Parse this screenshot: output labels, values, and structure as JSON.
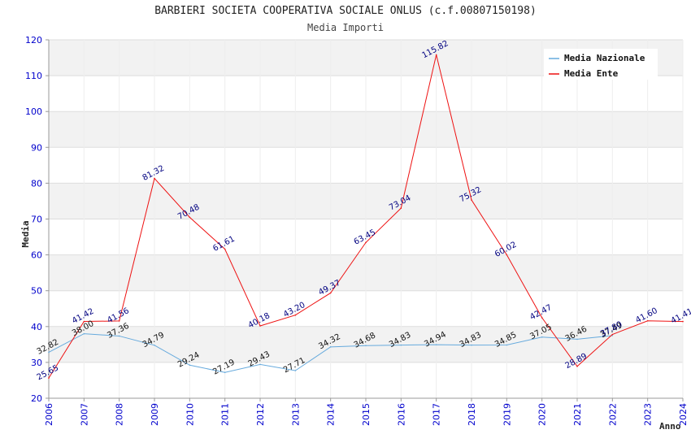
{
  "chart_data": {
    "type": "line",
    "title": "BARBIERI SOCIETA COOPERATIVA SOCIALE ONLUS (c.f.00807150198)",
    "subtitle": "Media Importi",
    "xlabel": "Anno",
    "ylabel": "Media",
    "ylim": [
      20,
      120
    ],
    "yticks": [
      20,
      30,
      40,
      50,
      60,
      70,
      80,
      90,
      100,
      110,
      120
    ],
    "x": [
      "2006",
      "2007",
      "2008",
      "2009",
      "2010",
      "2011",
      "2012",
      "2013",
      "2014",
      "2015",
      "2016",
      "2017",
      "2018",
      "2019",
      "2020",
      "2021",
      "2022",
      "2023",
      "2024"
    ],
    "grid": true,
    "legend_position": "top-right",
    "series": [
      {
        "name": "Media Nazionale",
        "color": "#66aadd",
        "label_color": "#111111",
        "values": [
          32.82,
          38.0,
          37.36,
          34.79,
          29.24,
          27.19,
          29.43,
          27.71,
          34.32,
          34.68,
          34.83,
          34.94,
          34.83,
          34.85,
          37.05,
          36.46,
          37.49,
          null,
          null
        ],
        "labels": [
          "32.82",
          "38.00",
          "37.36",
          "34.79",
          "29.24",
          "27.19",
          "29.43",
          "27.71",
          "34.32",
          "34.68",
          "34.83",
          "34.94",
          "34.83",
          "34.85",
          "37.05",
          "36.46",
          "37.49",
          "",
          ""
        ]
      },
      {
        "name": "Media Ente",
        "color": "#ee1111",
        "label_color": "#000080",
        "values": [
          25.65,
          41.42,
          41.56,
          81.32,
          70.48,
          61.61,
          40.18,
          43.2,
          49.37,
          63.45,
          73.04,
          115.82,
          75.32,
          60.02,
          42.47,
          28.89,
          37.8,
          41.6,
          41.41
        ],
        "labels": [
          "25.65",
          "41.42",
          "41.56",
          "81.32",
          "70.48",
          "61.61",
          "40.18",
          "43.20",
          "49.37",
          "63.45",
          "73.04",
          "115.82",
          "75.32",
          "60.02",
          "42.47",
          "28.89",
          "37.80",
          "41.60",
          "41.41"
        ]
      }
    ]
  }
}
